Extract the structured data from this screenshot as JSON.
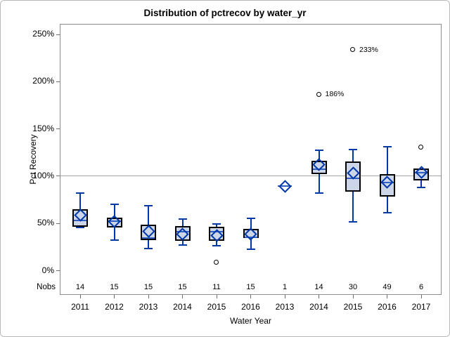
{
  "chart_data": {
    "type": "boxplot",
    "title": "Distribution of pctrecov by water_yr",
    "xlabel": "Water Year",
    "ylabel": "Pct Recovery",
    "nobs_label": "Nobs",
    "yticks": [
      0,
      50,
      100,
      150,
      200,
      250
    ],
    "ytick_suffix": "%",
    "ylim": [
      -26,
      260
    ],
    "reference_line": 100,
    "grid": false,
    "categories": [
      "2011",
      "2012",
      "2013",
      "2014",
      "2015",
      "2016",
      "2013",
      "2014",
      "2015",
      "2016",
      "2017"
    ],
    "nobs": [
      "14",
      "15",
      "15",
      "15",
      "11",
      "15",
      "1",
      "14",
      "30",
      "49",
      "6"
    ],
    "boxes": [
      {
        "year": "2011",
        "nobs": 14,
        "low": 45,
        "q1": 46,
        "median": 53,
        "q3": 65,
        "high": 82,
        "mean": 58,
        "outliers": []
      },
      {
        "year": "2012",
        "nobs": 15,
        "low": 32,
        "q1": 45,
        "median": 52,
        "q3": 56,
        "high": 70,
        "mean": 52,
        "outliers": []
      },
      {
        "year": "2013",
        "nobs": 15,
        "low": 23,
        "q1": 32,
        "median": 34,
        "q3": 48,
        "high": 68,
        "mean": 41,
        "outliers": []
      },
      {
        "year": "2014",
        "nobs": 15,
        "low": 27,
        "q1": 31,
        "median": 41,
        "q3": 47,
        "high": 54,
        "mean": 38,
        "outliers": []
      },
      {
        "year": "2015",
        "nobs": 11,
        "low": 26,
        "q1": 31,
        "median": 41,
        "q3": 46,
        "high": 49,
        "mean": 37,
        "outliers": [
          {
            "value": 8,
            "label": ""
          }
        ]
      },
      {
        "year": "2016",
        "nobs": 15,
        "low": 22,
        "q1": 34,
        "median": 35,
        "q3": 44,
        "high": 55,
        "mean": 38,
        "outliers": []
      },
      {
        "year": "2013",
        "nobs": 1,
        "single": true,
        "value": 89,
        "median": 89,
        "mean": 89,
        "outliers": []
      },
      {
        "year": "2014",
        "nobs": 14,
        "low": 82,
        "q1": 102,
        "median": 107,
        "q3": 116,
        "high": 127,
        "mean": 112,
        "outliers": [
          {
            "value": 186,
            "label": "186%"
          }
        ]
      },
      {
        "year": "2015",
        "nobs": 30,
        "low": 51,
        "q1": 83,
        "median": 97,
        "q3": 115,
        "high": 128,
        "mean": 103,
        "outliers": [
          {
            "value": 233,
            "label": "233%"
          }
        ]
      },
      {
        "year": "2016",
        "nobs": 49,
        "low": 61,
        "q1": 78,
        "median": 93,
        "q3": 102,
        "high": 131,
        "mean": 93,
        "outliers": []
      },
      {
        "year": "2017",
        "nobs": 6,
        "low": 88,
        "q1": 95,
        "median": 103,
        "q3": 108,
        "high": 108,
        "mean": 104,
        "outliers": [
          {
            "value": 130,
            "label": ""
          }
        ]
      }
    ],
    "colors": {
      "box_fill": "#ccd6e8",
      "box_border": "#000000",
      "whisker": "#0038a8",
      "median": "#2f5fc1",
      "mean_marker": "#0038a8",
      "outlier": "#000000",
      "reference_line": "#a6a6a6",
      "frame": "#8c8c8c",
      "text": "#000000"
    }
  }
}
